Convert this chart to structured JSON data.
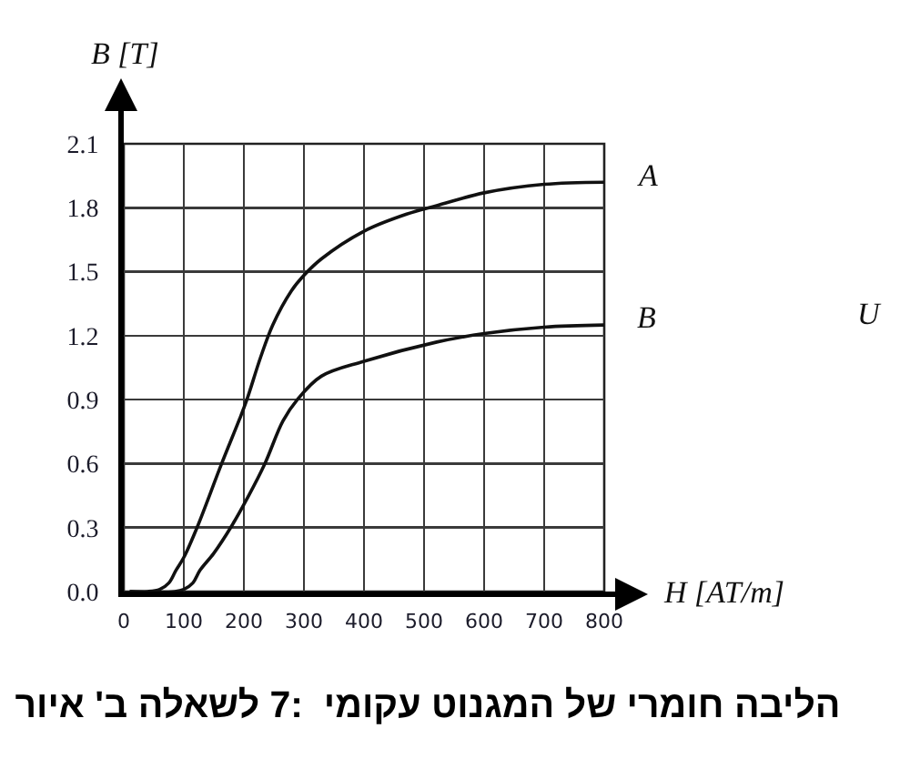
{
  "chart_data": {
    "type": "line",
    "xlabel": "H [AT/m]",
    "ylabel": "B [T]",
    "series": [
      {
        "name": "A",
        "color": "#111111",
        "x": [
          10,
          40,
          60,
          75,
          87,
          100,
          122,
          163,
          193,
          205,
          228,
          248,
          279,
          299,
          329,
          400,
          471,
          521,
          600,
          700,
          800
        ],
        "values": [
          0,
          0,
          0.01,
          0.04,
          0.1,
          0.16,
          0.3,
          0.6,
          0.81,
          0.9,
          1.1,
          1.25,
          1.41,
          1.48,
          1.56,
          1.69,
          1.77,
          1.81,
          1.87,
          1.91,
          1.92
        ]
      },
      {
        "name": "B",
        "color": "#111111",
        "x": [
          10,
          85,
          100,
          115,
          127,
          150,
          178,
          208,
          235,
          265,
          289,
          329,
          400,
          521,
          600,
          700,
          800
        ],
        "values": [
          0,
          0,
          0.01,
          0.04,
          0.1,
          0.18,
          0.3,
          0.45,
          0.6,
          0.8,
          0.9,
          1.01,
          1.08,
          1.17,
          1.21,
          1.24,
          1.25
        ]
      }
    ],
    "xlim": [
      0,
      800
    ],
    "xticks": [
      0,
      100,
      200,
      300,
      400,
      500,
      600,
      700,
      800
    ],
    "ylim": [
      0,
      2.1
    ],
    "yticks": [
      {
        "value": 0,
        "label": "0.0"
      },
      0.3,
      0.6,
      0.9,
      1.2,
      1.5,
      1.8,
      2.1
    ],
    "grid": true,
    "annotations": [
      "U",
      "איור ב' לשאלה 7:  עקומי המגנוט של חומרי הליבה"
    ]
  }
}
